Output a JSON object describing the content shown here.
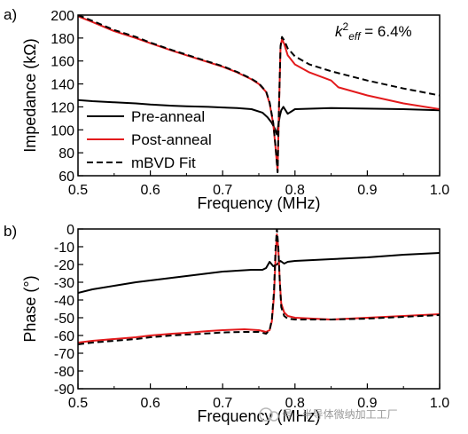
{
  "chart_data": [
    {
      "panel": "a)",
      "type": "line",
      "xlabel": "Frequency (MHz)",
      "ylabel": "Impedance (kΩ)",
      "xlim": [
        0.5,
        1.0
      ],
      "ylim": [
        60,
        200
      ],
      "xticks": [
        "0.5",
        "0.6",
        "0.7",
        "0.8",
        "0.9",
        "1.0"
      ],
      "yticks": [
        "60",
        "80",
        "100",
        "120",
        "140",
        "160",
        "180",
        "200"
      ],
      "annotation": {
        "k": "k",
        "sup": "2",
        "sub": "eff",
        "value": " = 6.4%"
      },
      "legend_position": "bottom-left",
      "series": [
        {
          "name": "Pre-anneal",
          "color": "#000000",
          "dash": "solid",
          "points": [
            [
              0.5,
              126
            ],
            [
              0.52,
              125
            ],
            [
              0.55,
              124
            ],
            [
              0.58,
              123
            ],
            [
              0.6,
              122
            ],
            [
              0.63,
              121
            ],
            [
              0.65,
              120.5
            ],
            [
              0.68,
              120
            ],
            [
              0.7,
              119.5
            ],
            [
              0.72,
              119
            ],
            [
              0.74,
              118
            ],
            [
              0.755,
              115
            ],
            [
              0.762,
              111
            ],
            [
              0.768,
              106
            ],
            [
              0.772,
              101
            ],
            [
              0.775,
              96
            ],
            [
              0.777,
              104
            ],
            [
              0.779,
              112
            ],
            [
              0.781,
              117
            ],
            [
              0.784,
              120
            ],
            [
              0.787,
              117
            ],
            [
              0.79,
              114
            ],
            [
              0.795,
              116
            ],
            [
              0.8,
              118
            ],
            [
              0.85,
              119
            ],
            [
              0.9,
              118.5
            ],
            [
              0.95,
              118
            ],
            [
              1.0,
              117
            ]
          ]
        },
        {
          "name": "Post-anneal",
          "color": "#e31a1c",
          "dash": "solid",
          "points": [
            [
              0.5,
              199
            ],
            [
              0.52,
              194
            ],
            [
              0.55,
              186
            ],
            [
              0.58,
              180
            ],
            [
              0.6,
              175.5
            ],
            [
              0.63,
              169
            ],
            [
              0.65,
              165
            ],
            [
              0.68,
              159
            ],
            [
              0.7,
              155
            ],
            [
              0.72,
              150
            ],
            [
              0.74,
              144
            ],
            [
              0.75,
              140
            ],
            [
              0.76,
              133
            ],
            [
              0.765,
              123
            ],
            [
              0.77,
              105
            ],
            [
              0.773,
              85
            ],
            [
              0.776,
              64
            ],
            [
              0.778,
              120
            ],
            [
              0.78,
              172
            ],
            [
              0.782,
              179
            ],
            [
              0.785,
              175
            ],
            [
              0.79,
              165
            ],
            [
              0.8,
              157
            ],
            [
              0.82,
              150
            ],
            [
              0.85,
              143
            ],
            [
              0.86,
              137
            ],
            [
              0.9,
              130
            ],
            [
              0.95,
              123
            ],
            [
              1.0,
              118
            ]
          ]
        },
        {
          "name": "mBVD Fit",
          "color": "#000000",
          "dash": "dashed",
          "points": [
            [
              0.5,
              200
            ],
            [
              0.52,
              195
            ],
            [
              0.55,
              187
            ],
            [
              0.58,
              181
            ],
            [
              0.6,
              176
            ],
            [
              0.63,
              169.5
            ],
            [
              0.65,
              165.5
            ],
            [
              0.68,
              159.5
            ],
            [
              0.7,
              155.5
            ],
            [
              0.72,
              150.5
            ],
            [
              0.74,
              144.5
            ],
            [
              0.75,
              140.5
            ],
            [
              0.76,
              133.5
            ],
            [
              0.765,
              124
            ],
            [
              0.77,
              106
            ],
            [
              0.773,
              86
            ],
            [
              0.776,
              63
            ],
            [
              0.778,
              122
            ],
            [
              0.78,
              173
            ],
            [
              0.782,
              181
            ],
            [
              0.785,
              178
            ],
            [
              0.79,
              171
            ],
            [
              0.8,
              164
            ],
            [
              0.82,
              157
            ],
            [
              0.85,
              151
            ],
            [
              0.9,
              143
            ],
            [
              0.95,
              136
            ],
            [
              1.0,
              130
            ]
          ]
        }
      ]
    },
    {
      "panel": "b)",
      "type": "line",
      "xlabel": "Frequency (MHz)",
      "ylabel": "Phase (°)",
      "xlim": [
        0.5,
        1.0
      ],
      "ylim": [
        -90,
        0
      ],
      "xticks": [
        "0.5",
        "0.6",
        "0.7",
        "0.8",
        "0.9",
        "1.0"
      ],
      "yticks": [
        "0",
        "-10",
        "-20",
        "-30",
        "-40",
        "-50",
        "-60",
        "-70",
        "-80",
        "-90"
      ],
      "series": [
        {
          "name": "Pre-anneal",
          "color": "#000000",
          "dash": "solid",
          "points": [
            [
              0.5,
              -36
            ],
            [
              0.52,
              -34
            ],
            [
              0.55,
              -32
            ],
            [
              0.58,
              -30
            ],
            [
              0.6,
              -29
            ],
            [
              0.63,
              -27.5
            ],
            [
              0.65,
              -26.5
            ],
            [
              0.68,
              -25
            ],
            [
              0.7,
              -24
            ],
            [
              0.72,
              -23.5
            ],
            [
              0.74,
              -23
            ],
            [
              0.755,
              -23
            ],
            [
              0.76,
              -22
            ],
            [
              0.765,
              -18.5
            ],
            [
              0.77,
              -21
            ],
            [
              0.775,
              -20
            ],
            [
              0.78,
              -18
            ],
            [
              0.785,
              -19.5
            ],
            [
              0.79,
              -18.5
            ],
            [
              0.8,
              -18
            ],
            [
              0.85,
              -17
            ],
            [
              0.9,
              -16
            ],
            [
              0.95,
              -14.5
            ],
            [
              1.0,
              -13.5
            ]
          ]
        },
        {
          "name": "Post-anneal",
          "color": "#e31a1c",
          "dash": "solid",
          "points": [
            [
              0.5,
              -64
            ],
            [
              0.52,
              -63
            ],
            [
              0.55,
              -62
            ],
            [
              0.58,
              -61
            ],
            [
              0.6,
              -60
            ],
            [
              0.63,
              -59
            ],
            [
              0.65,
              -58.5
            ],
            [
              0.68,
              -57.5
            ],
            [
              0.7,
              -57
            ],
            [
              0.73,
              -56.5
            ],
            [
              0.75,
              -57
            ],
            [
              0.76,
              -58
            ],
            [
              0.765,
              -57
            ],
            [
              0.768,
              -52
            ],
            [
              0.771,
              -38
            ],
            [
              0.773,
              -17
            ],
            [
              0.775,
              -3
            ],
            [
              0.777,
              -11
            ],
            [
              0.779,
              -30
            ],
            [
              0.781,
              -42
            ],
            [
              0.785,
              -47
            ],
            [
              0.79,
              -49
            ],
            [
              0.8,
              -50
            ],
            [
              0.85,
              -51
            ],
            [
              0.9,
              -50
            ],
            [
              0.95,
              -49
            ],
            [
              1.0,
              -48
            ]
          ]
        },
        {
          "name": "mBVD Fit",
          "color": "#000000",
          "dash": "dashed",
          "points": [
            [
              0.5,
              -65
            ],
            [
              0.52,
              -64
            ],
            [
              0.55,
              -63
            ],
            [
              0.58,
              -62
            ],
            [
              0.6,
              -61
            ],
            [
              0.63,
              -60
            ],
            [
              0.65,
              -59.5
            ],
            [
              0.68,
              -58.8
            ],
            [
              0.7,
              -58.3
            ],
            [
              0.73,
              -58
            ],
            [
              0.75,
              -58
            ],
            [
              0.76,
              -59
            ],
            [
              0.765,
              -57
            ],
            [
              0.768,
              -51
            ],
            [
              0.771,
              -35
            ],
            [
              0.773,
              -12
            ],
            [
              0.775,
              0
            ],
            [
              0.777,
              -10
            ],
            [
              0.779,
              -30
            ],
            [
              0.781,
              -44
            ],
            [
              0.785,
              -49
            ],
            [
              0.79,
              -50.5
            ],
            [
              0.8,
              -51
            ],
            [
              0.85,
              -51
            ],
            [
              0.9,
              -50.5
            ],
            [
              0.95,
              -49.5
            ],
            [
              1.0,
              -48.5
            ]
          ]
        }
      ]
    }
  ],
  "watermark": "号 · 半导体微纳加工工厂"
}
